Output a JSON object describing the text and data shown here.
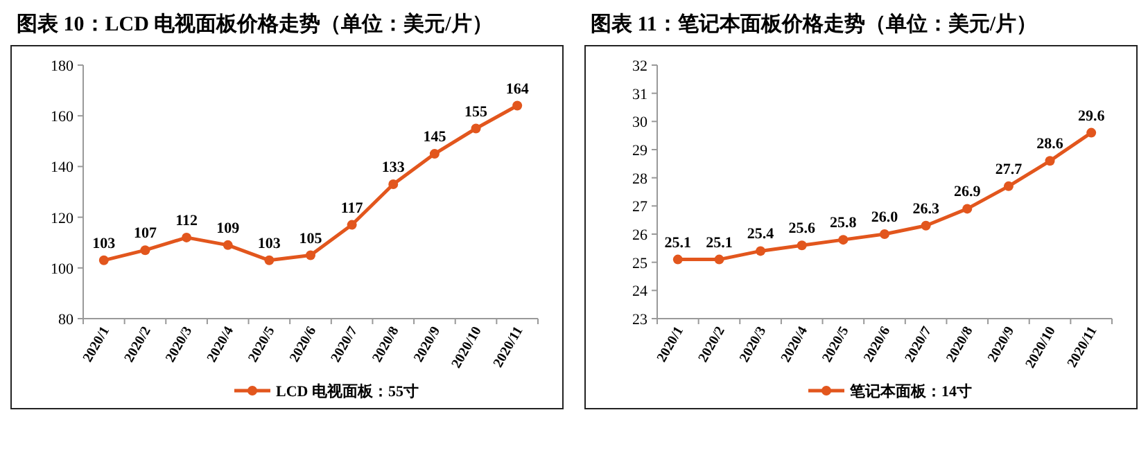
{
  "chart_data": [
    {
      "type": "line",
      "title": "图表 10：LCD 电视面板价格走势（单位：美元/片）",
      "categories": [
        "2020/1",
        "2020/2",
        "2020/3",
        "2020/4",
        "2020/5",
        "2020/6",
        "2020/7",
        "2020/8",
        "2020/9",
        "2020/10",
        "2020/11"
      ],
      "series": [
        {
          "name": "LCD 电视面板：55寸",
          "color": "#e2561d",
          "values": [
            103,
            107,
            112,
            109,
            103,
            105,
            117,
            133,
            145,
            155,
            164
          ]
        }
      ],
      "ylim": [
        80,
        180
      ],
      "yticks": [
        80,
        100,
        120,
        140,
        160,
        180
      ],
      "marker": "circle",
      "data_labels": true,
      "legend": "bottom"
    },
    {
      "type": "line",
      "title": "图表 11：笔记本面板价格走势（单位：美元/片）",
      "categories": [
        "2020/1",
        "2020/2",
        "2020/3",
        "2020/4",
        "2020/5",
        "2020/6",
        "2020/7",
        "2020/8",
        "2020/9",
        "2020/10",
        "2020/11"
      ],
      "series": [
        {
          "name": "笔记本面板：14寸",
          "color": "#e2561d",
          "values": [
            25.1,
            25.1,
            25.4,
            25.6,
            25.8,
            26.0,
            26.3,
            26.9,
            27.7,
            28.6,
            29.6
          ],
          "value_labels": [
            "25.1",
            "25.1",
            "25.4",
            "25.6",
            "25.8",
            "26.0",
            "26.3",
            "26.9",
            "27.7",
            "28.6",
            "29.6"
          ]
        }
      ],
      "ylim": [
        23,
        32
      ],
      "yticks": [
        23,
        24,
        25,
        26,
        27,
        28,
        29,
        30,
        31,
        32
      ],
      "marker": "circle",
      "legend": "bottom"
    }
  ]
}
